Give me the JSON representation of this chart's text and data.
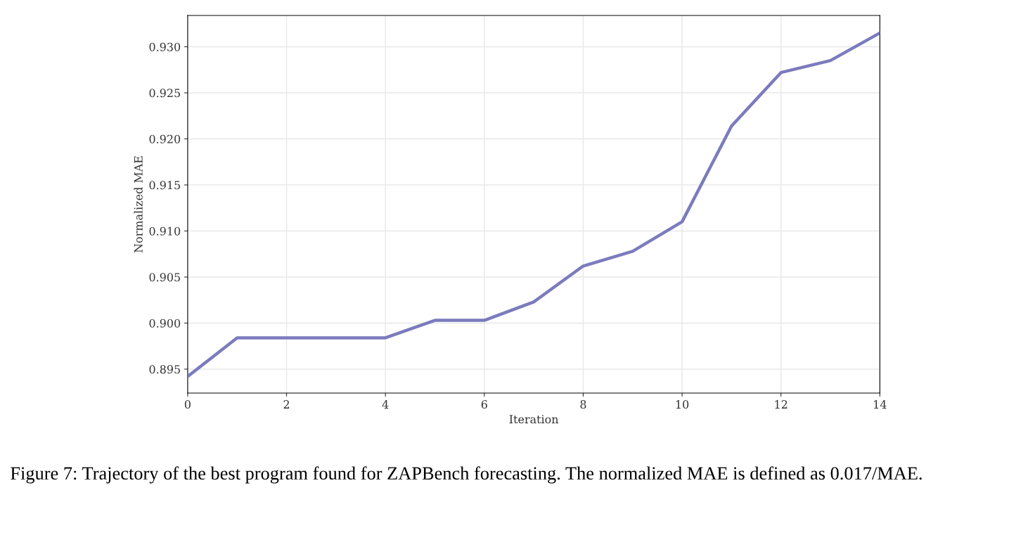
{
  "chart_data": {
    "type": "line",
    "xlabel": "Iteration",
    "ylabel": "Normalized MAE",
    "x": [
      0,
      1,
      2,
      3,
      4,
      5,
      6,
      7,
      8,
      9,
      10,
      11,
      12,
      13,
      14
    ],
    "series": [
      {
        "color": "#7b7bbd",
        "values": [
          0.8942,
          0.8984,
          0.8984,
          0.8984,
          0.8984,
          0.9003,
          0.9003,
          0.9023,
          0.9062,
          0.9078,
          0.911,
          0.9214,
          0.9272,
          0.9285,
          0.9315
        ]
      }
    ],
    "xlim": [
      0,
      14
    ],
    "xticks": [
      0,
      2,
      4,
      6,
      8,
      10,
      12,
      14
    ],
    "ylim": [
      0.8924,
      0.9334
    ],
    "yticks": [
      {
        "value": 0.895,
        "label": "0.895"
      },
      {
        "value": 0.9,
        "label": "0.900"
      },
      {
        "value": 0.905,
        "label": "0.905"
      },
      {
        "value": 0.91,
        "label": "0.910"
      },
      {
        "value": 0.915,
        "label": "0.915"
      },
      {
        "value": 0.92,
        "label": "0.920"
      },
      {
        "value": 0.925,
        "label": "0.925"
      },
      {
        "value": 0.93,
        "label": "0.930"
      }
    ],
    "grid": true,
    "legend": false,
    "marker": "none",
    "line_style": "solid",
    "annotations": [
      "Figure 7: Trajectory of the best program found for ZAPBench forecasting. The normalized MAE is defined as 0.017/MAE."
    ]
  }
}
